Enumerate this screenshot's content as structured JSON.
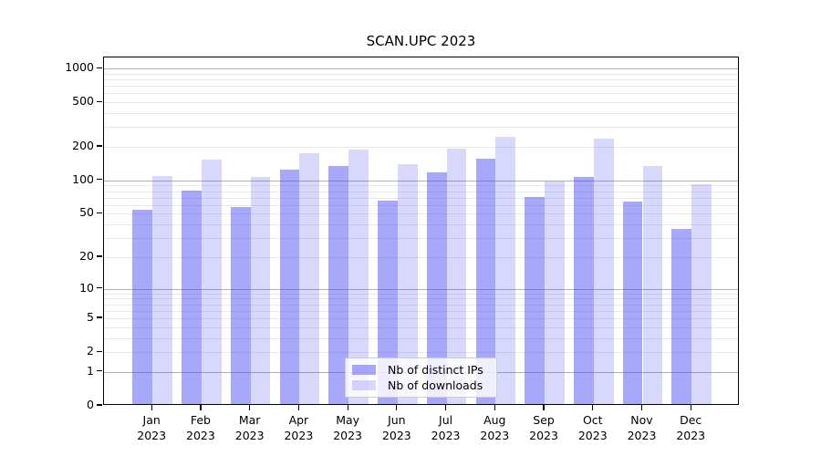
{
  "title": "SCAN.UPC 2023",
  "chart_data": {
    "type": "bar",
    "title": "SCAN.UPC 2023",
    "categories": [
      "Jan",
      "Feb",
      "Mar",
      "Apr",
      "May",
      "Jun",
      "Jul",
      "Aug",
      "Sep",
      "Oct",
      "Nov",
      "Dec"
    ],
    "category_year": "2023",
    "series": [
      {
        "name": "Nb of distinct IPs",
        "color": "rgba(70,70,244,0.47)",
        "values": [
          52,
          78,
          56,
          120,
          129,
          63,
          115,
          150,
          68,
          104,
          62,
          35
        ]
      },
      {
        "name": "Nb of downloads",
        "color": "rgba(70,70,244,0.21)",
        "values": [
          105,
          148,
          103,
          168,
          184,
          134,
          185,
          238,
          95,
          228,
          130,
          90
        ]
      }
    ],
    "y_axis": {
      "scale": "log1p",
      "ticks": [
        0,
        1,
        2,
        5,
        10,
        20,
        50,
        100,
        200,
        500,
        1000
      ],
      "major_gridlines": [
        1,
        10,
        100,
        1000
      ],
      "minor_gridlines": [
        2,
        3,
        4,
        5,
        6,
        7,
        8,
        9,
        20,
        30,
        40,
        50,
        60,
        70,
        80,
        90,
        200,
        300,
        400,
        500,
        600,
        700,
        800,
        900
      ],
      "ymax": 1254
    },
    "legend": {
      "position": "bottom-center",
      "entries": [
        "Nb of distinct IPs",
        "Nb of downloads"
      ]
    },
    "grid": true,
    "background": "#ffffff"
  },
  "colors": {
    "bar_distinct_ips": "rgba(70,70,244,0.47)",
    "bar_downloads": "rgba(70,70,244,0.21)",
    "major_grid": "#b0b0b0",
    "minor_grid": "#e8e8e8",
    "axis": "#000000",
    "legend_border": "#cccccc",
    "legend_background": "rgba(255,255,255,0.8)",
    "text": "#000000"
  }
}
